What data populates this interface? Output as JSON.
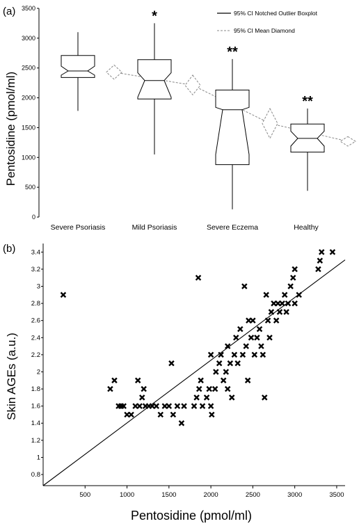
{
  "chart_data": [
    {
      "type": "boxplot",
      "panel_label": "(a)",
      "ylabel": "Pentosidine (pmol/ml)",
      "ylim": [
        0,
        3500
      ],
      "yticks": [
        0,
        500,
        1000,
        1500,
        2000,
        2500,
        3000,
        3500
      ],
      "categories": [
        "Severe Psoriasis",
        "Mild Psoriasis",
        "Severe Eczema",
        "Healthy"
      ],
      "legend": {
        "placement": "top-right",
        "entries": [
          "95% CI Notched Outlier Boxplot",
          "95% CI Mean Diamond"
        ]
      },
      "boxes": [
        {
          "whisker_low": 1780,
          "q1": 2340,
          "median": 2450,
          "q3": 2710,
          "whisker_high": 3100,
          "notch_low": 2380,
          "notch_high": 2530,
          "significance": ""
        },
        {
          "whisker_low": 1050,
          "q1": 1980,
          "median": 2290,
          "q3": 2640,
          "whisker_high": 3250,
          "notch_low": 2010,
          "notch_high": 2420,
          "significance": "*"
        },
        {
          "whisker_low": 130,
          "q1": 880,
          "median": 1800,
          "q3": 2130,
          "whisker_high": 2650,
          "notch_low": 1050,
          "notch_high": 1840,
          "significance": "**"
        },
        {
          "whisker_low": 440,
          "q1": 1090,
          "median": 1320,
          "q3": 1560,
          "whisker_high": 1820,
          "notch_low": 1190,
          "notch_high": 1440,
          "significance": "**"
        }
      ],
      "mean_diamonds": [
        {
          "mean": 2430,
          "ci_low": 2310,
          "ci_high": 2550
        },
        {
          "mean": 2210,
          "ci_low": 2050,
          "ci_high": 2380
        },
        {
          "mean": 1570,
          "ci_low": 1320,
          "ci_high": 1820
        },
        {
          "mean": 1270,
          "ci_low": 1190,
          "ci_high": 1350
        }
      ]
    },
    {
      "type": "scatter",
      "panel_label": "(b)",
      "xlabel": "Pentosidine (pmol/ml)",
      "ylabel": "Skin AGEs (a.u.)",
      "xlim": [
        0,
        3600
      ],
      "ylim": [
        0.67,
        3.5
      ],
      "xticks": [
        500,
        1000,
        1500,
        2000,
        2500,
        3000,
        3500
      ],
      "yticks": [
        0.8,
        1,
        1.2,
        1.4,
        1.6,
        1.8,
        2,
        2.2,
        2.4,
        2.6,
        2.8,
        3,
        3.2,
        3.4
      ],
      "trendline": {
        "slope": 0.000733,
        "intercept": 0.67
      },
      "points": [
        [
          240,
          2.9
        ],
        [
          800,
          1.8
        ],
        [
          850,
          1.9
        ],
        [
          900,
          1.6
        ],
        [
          930,
          1.6
        ],
        [
          960,
          1.6
        ],
        [
          1000,
          1.5
        ],
        [
          1050,
          1.5
        ],
        [
          1100,
          1.6
        ],
        [
          1130,
          1.9
        ],
        [
          1150,
          1.6
        ],
        [
          1180,
          1.7
        ],
        [
          1200,
          1.8
        ],
        [
          1220,
          1.6
        ],
        [
          1260,
          1.6
        ],
        [
          1300,
          1.6
        ],
        [
          1350,
          1.6
        ],
        [
          1400,
          1.5
        ],
        [
          1450,
          1.6
        ],
        [
          1500,
          1.6
        ],
        [
          1550,
          1.5
        ],
        [
          1600,
          1.6
        ],
        [
          1650,
          1.4
        ],
        [
          1680,
          1.6
        ],
        [
          1530,
          2.1
        ],
        [
          1800,
          1.6
        ],
        [
          1830,
          1.7
        ],
        [
          1850,
          3.1
        ],
        [
          1860,
          1.8
        ],
        [
          1880,
          1.9
        ],
        [
          1900,
          1.6
        ],
        [
          1950,
          1.7
        ],
        [
          1980,
          1.8
        ],
        [
          2000,
          1.6
        ],
        [
          2000,
          2.2
        ],
        [
          2010,
          1.5
        ],
        [
          2050,
          1.8
        ],
        [
          2060,
          2.0
        ],
        [
          2100,
          2.1
        ],
        [
          2120,
          2.2
        ],
        [
          2150,
          1.9
        ],
        [
          2180,
          2.0
        ],
        [
          2200,
          1.8
        ],
        [
          2200,
          2.3
        ],
        [
          2230,
          2.1
        ],
        [
          2250,
          1.7
        ],
        [
          2280,
          2.2
        ],
        [
          2300,
          2.4
        ],
        [
          2320,
          2.1
        ],
        [
          2350,
          2.5
        ],
        [
          2380,
          2.2
        ],
        [
          2400,
          3.0
        ],
        [
          2420,
          2.3
        ],
        [
          2440,
          1.9
        ],
        [
          2450,
          2.6
        ],
        [
          2480,
          2.4
        ],
        [
          2500,
          2.6
        ],
        [
          2520,
          2.2
        ],
        [
          2550,
          2.4
        ],
        [
          2580,
          2.5
        ],
        [
          2600,
          2.3
        ],
        [
          2620,
          2.2
        ],
        [
          2640,
          1.7
        ],
        [
          2660,
          2.9
        ],
        [
          2680,
          2.6
        ],
        [
          2700,
          2.4
        ],
        [
          2720,
          2.7
        ],
        [
          2750,
          2.8
        ],
        [
          2780,
          2.6
        ],
        [
          2800,
          2.8
        ],
        [
          2820,
          2.7
        ],
        [
          2850,
          2.8
        ],
        [
          2880,
          2.9
        ],
        [
          2900,
          2.7
        ],
        [
          2920,
          2.8
        ],
        [
          2950,
          3.0
        ],
        [
          2980,
          3.1
        ],
        [
          3000,
          3.2
        ],
        [
          3000,
          2.8
        ],
        [
          3050,
          2.9
        ],
        [
          3280,
          3.2
        ],
        [
          3300,
          3.3
        ],
        [
          3320,
          3.4
        ],
        [
          3450,
          3.4
        ]
      ]
    }
  ]
}
